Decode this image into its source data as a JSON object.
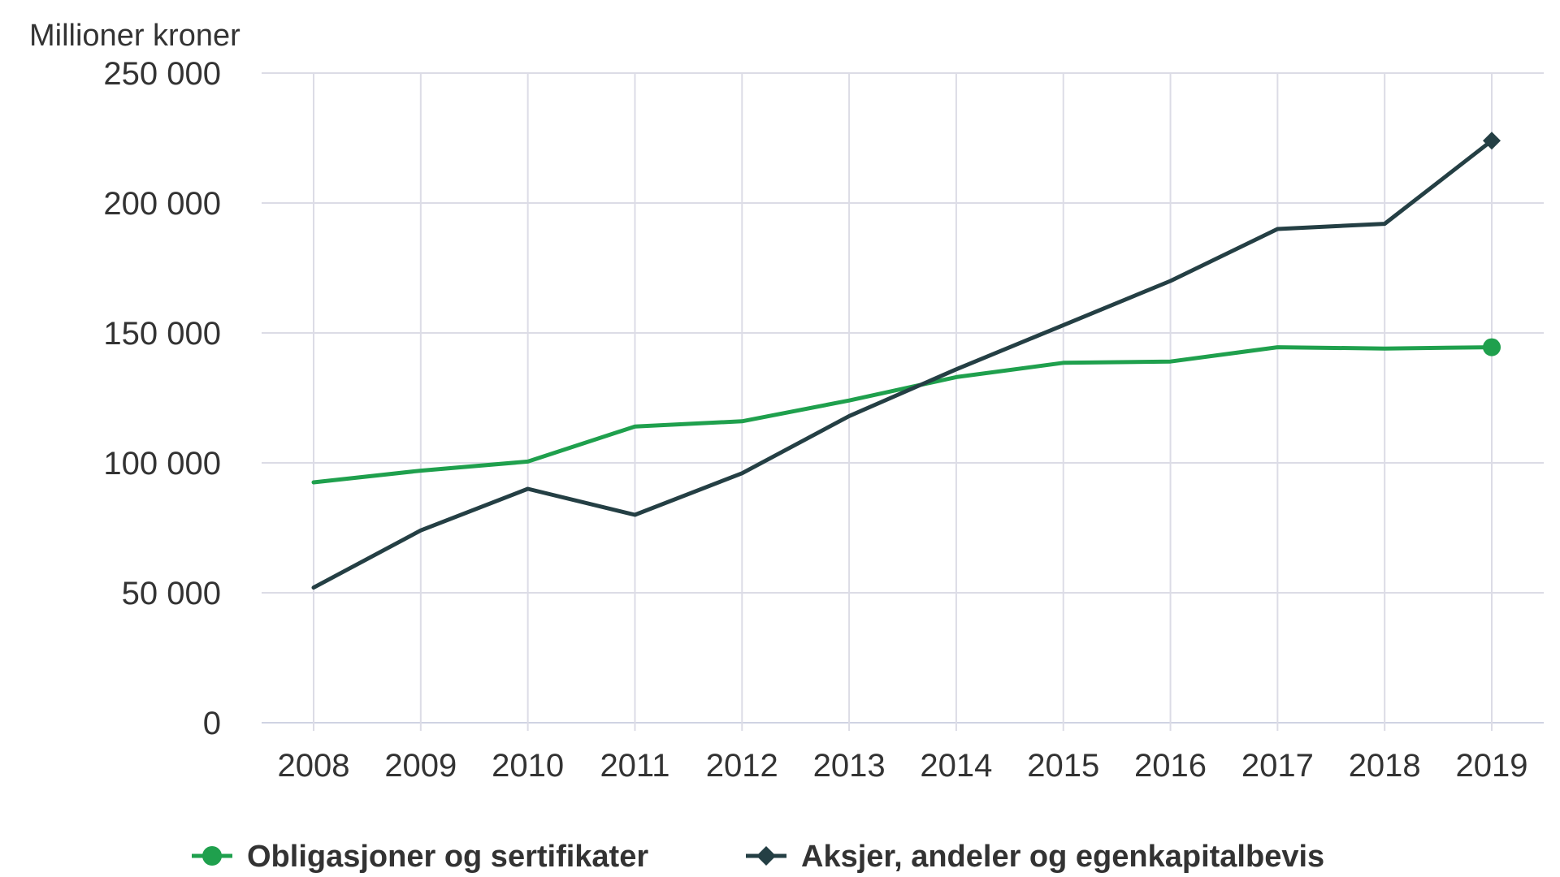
{
  "chart_data": {
    "type": "line",
    "title": "",
    "ylabel": "Millioner kroner",
    "xlabel": "",
    "x": [
      "2008",
      "2009",
      "2010",
      "2011",
      "2012",
      "2013",
      "2014",
      "2015",
      "2016",
      "2017",
      "2018",
      "2019"
    ],
    "ylim": [
      0,
      250000
    ],
    "yticks": [
      0,
      50000,
      100000,
      150000,
      200000,
      250000
    ],
    "ytick_labels": [
      "0",
      "50 000",
      "100 000",
      "150 000",
      "200 000",
      "250 000"
    ],
    "grid": true,
    "legend_position": "bottom",
    "series": [
      {
        "name": "Obligasjoner og sertifikater",
        "color": "#1fa04d",
        "marker": "circle",
        "values": [
          92500,
          97000,
          100500,
          114000,
          116000,
          124000,
          133000,
          138500,
          139000,
          144500,
          144000,
          144500
        ]
      },
      {
        "name": "Aksjer, andeler og egenkapitalbevis",
        "color": "#243f44",
        "marker": "diamond",
        "values": [
          52000,
          74000,
          90000,
          80000,
          96000,
          118000,
          136000,
          153000,
          170000,
          190000,
          192000,
          224000
        ]
      }
    ]
  }
}
